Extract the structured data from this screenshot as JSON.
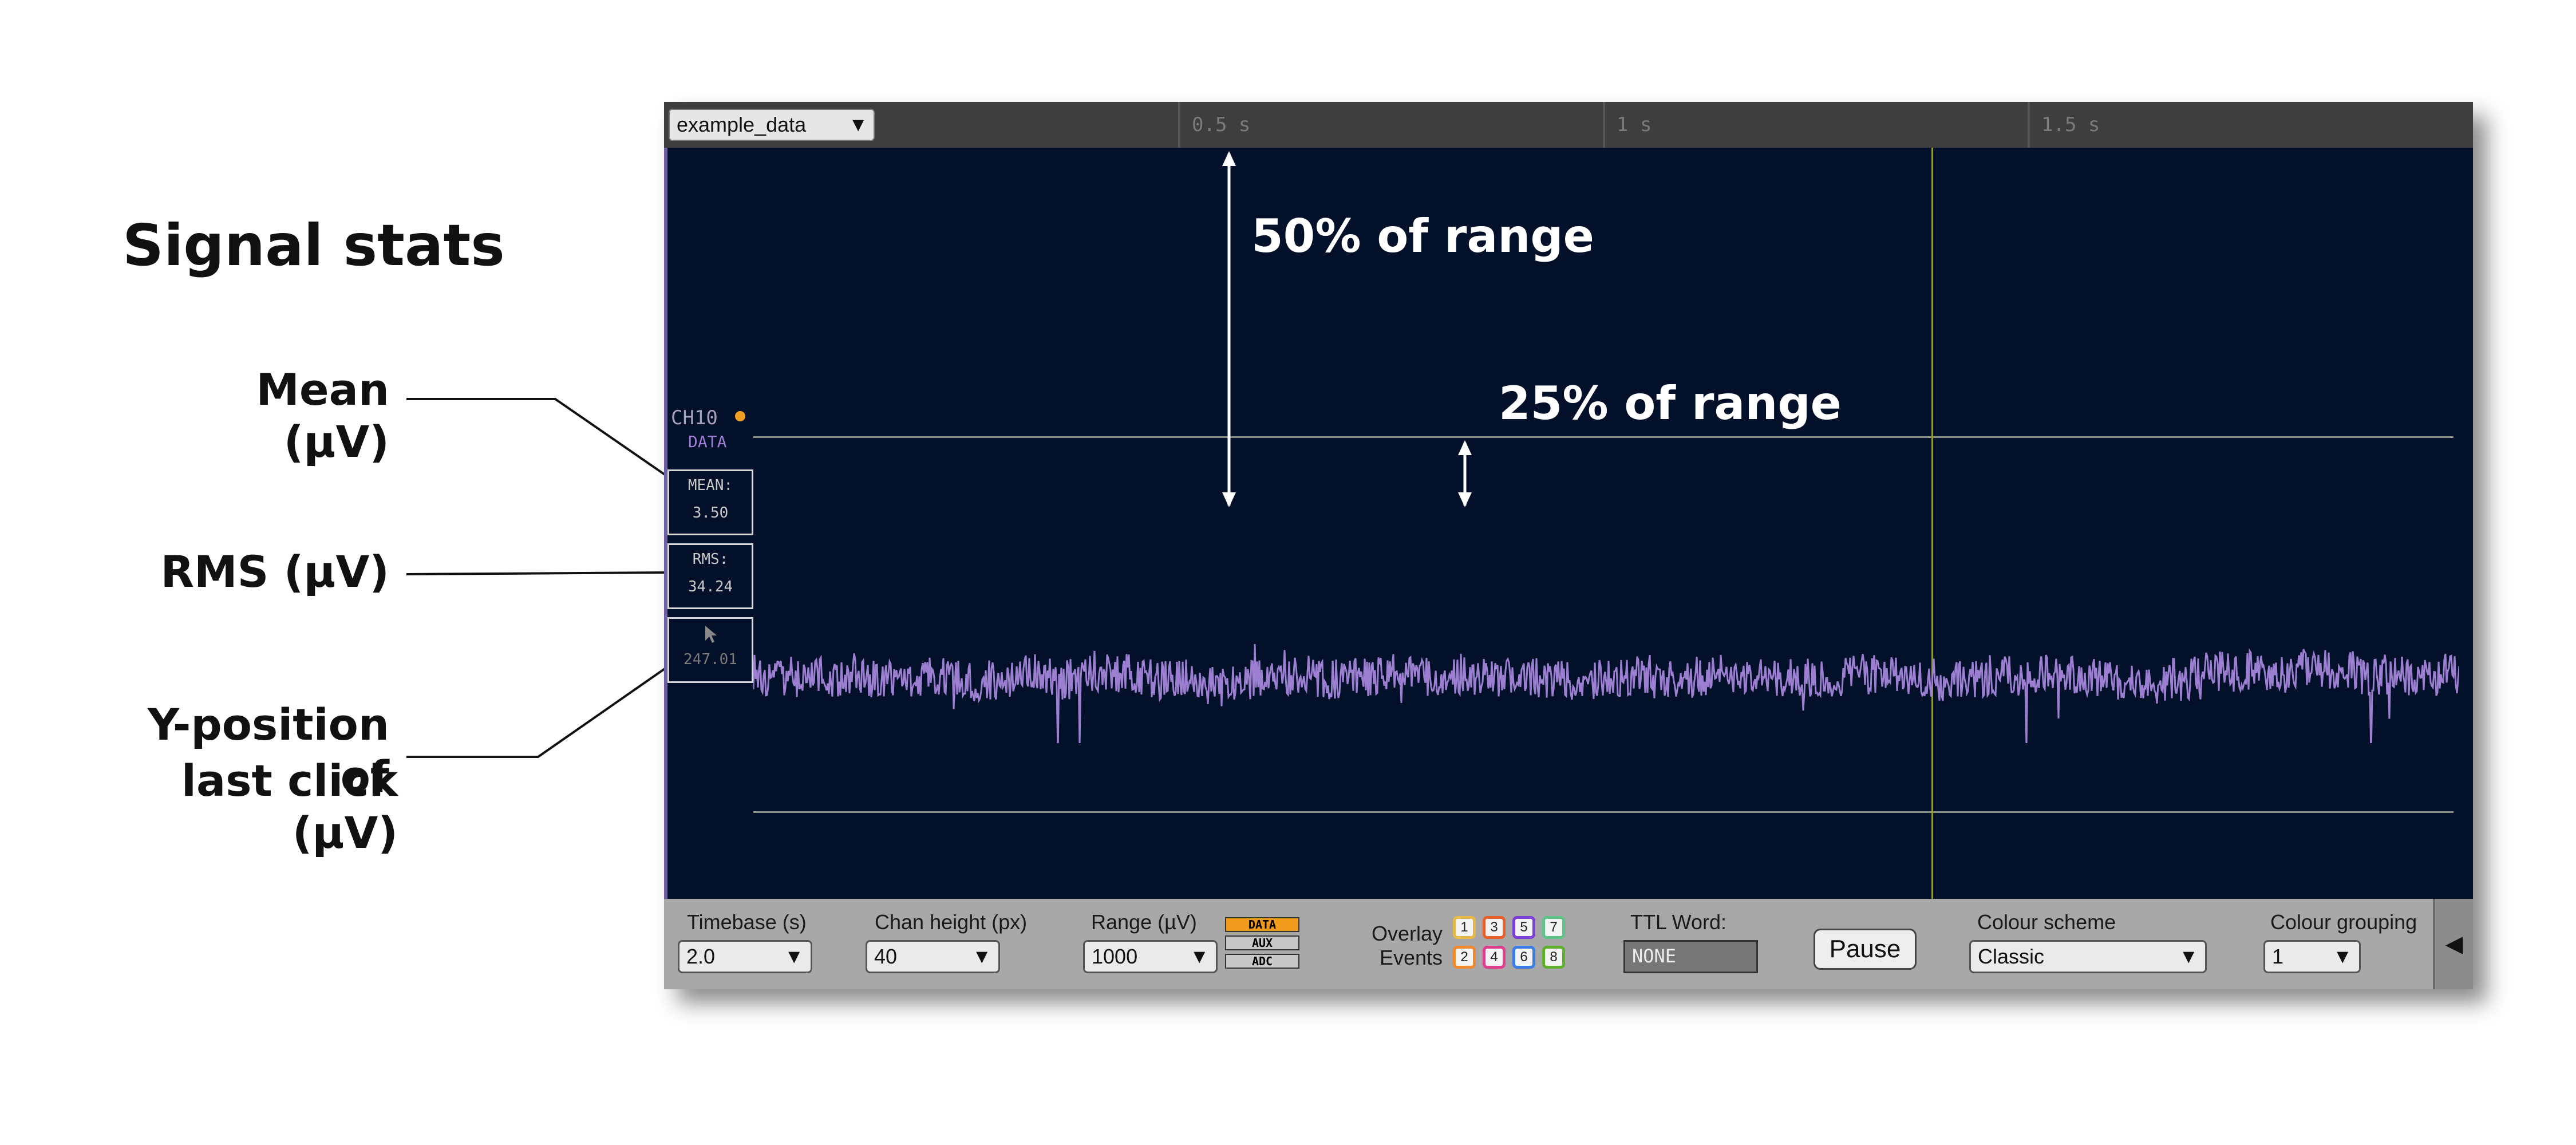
{
  "annotations": {
    "title": "Signal stats",
    "mean_label": "Mean (µV)",
    "rms_label": "RMS (µV)",
    "ypos_label_line1": "Y-position of",
    "ypos_label_line2": "last click (µV)",
    "range50": "50% of range",
    "range25": "25% of range"
  },
  "header": {
    "data_source": "example_data",
    "timestamps": [
      "0.5 s",
      "1 s",
      "1.5 s"
    ]
  },
  "channel": {
    "name": "CH10",
    "type_label": "DATA",
    "status_color": "#f0a020",
    "trace_color": "#9c7fd0",
    "mean_key": "MEAN:",
    "mean_value": "3.50",
    "rms_key": "RMS:",
    "rms_value": "34.24",
    "click_value": "247.01"
  },
  "controls": {
    "timebase_label": "Timebase (s)",
    "timebase_value": "2.0",
    "chan_height_label": "Chan height (px)",
    "chan_height_value": "40",
    "range_label": "Range (µV)",
    "range_value": "1000",
    "type_buttons": [
      "DATA",
      "AUX",
      "ADC"
    ],
    "overlay_label_1": "Overlay",
    "overlay_label_2": "Events",
    "event_numbers": [
      "1",
      "3",
      "5",
      "7",
      "2",
      "4",
      "6",
      "8"
    ],
    "event_colors": [
      "#e6b84a",
      "#e8602c",
      "#7a3fd6",
      "#5fc48a",
      "#f08a2c",
      "#e03c8c",
      "#3b7be6",
      "#5fb02a"
    ],
    "ttl_label": "TTL Word:",
    "ttl_value": "NONE",
    "pause_label": "Pause",
    "colour_scheme_label": "Colour scheme",
    "colour_scheme_value": "Classic",
    "colour_grouping_label": "Colour grouping",
    "colour_grouping_value": "1",
    "collapse_icon": "◀"
  }
}
